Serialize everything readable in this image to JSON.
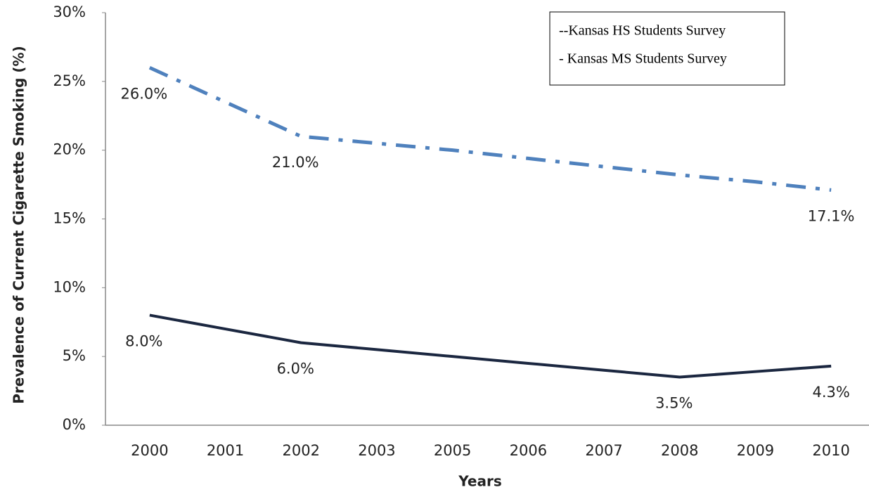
{
  "chart_data": {
    "type": "line",
    "x_label": "Years",
    "y_label": "Prevalence of Current Cigarette Smoking (%)",
    "categories": [
      "2000",
      "2001",
      "2002",
      "2003",
      "2005",
      "2006",
      "2007",
      "2008",
      "2009",
      "2010"
    ],
    "series": [
      {
        "name": "--Kansas HS Students Survey",
        "color": "#4f81bd",
        "dash": "dash-dot",
        "values": [
          26.0,
          23.5,
          21.0,
          20.5,
          20.0,
          19.4,
          18.8,
          18.2,
          17.7,
          17.1
        ],
        "value_labels": [
          "26.0%",
          null,
          "21.0%",
          null,
          null,
          null,
          null,
          null,
          null,
          "17.1%"
        ]
      },
      {
        "name": "- Kansas MS Students Survey",
        "color": "#1b2740",
        "dash": "solid",
        "values": [
          8.0,
          7.0,
          6.0,
          5.5,
          5.0,
          4.5,
          4.0,
          3.5,
          3.9,
          4.3
        ],
        "value_labels": [
          "8.0%",
          null,
          "6.0%",
          null,
          null,
          null,
          null,
          "3.5%",
          null,
          "4.3%"
        ]
      }
    ],
    "ylim": [
      0,
      30
    ],
    "yticks": [
      {
        "value": 0,
        "label": "0%"
      },
      {
        "value": 5,
        "label": "5%"
      },
      {
        "value": 10,
        "label": "10%"
      },
      {
        "value": 15,
        "label": "15%"
      },
      {
        "value": 20,
        "label": "20%"
      },
      {
        "value": 25,
        "label": "25%"
      },
      {
        "value": 30,
        "label": "30%"
      }
    ],
    "grid": false,
    "legend": "top-right"
  }
}
